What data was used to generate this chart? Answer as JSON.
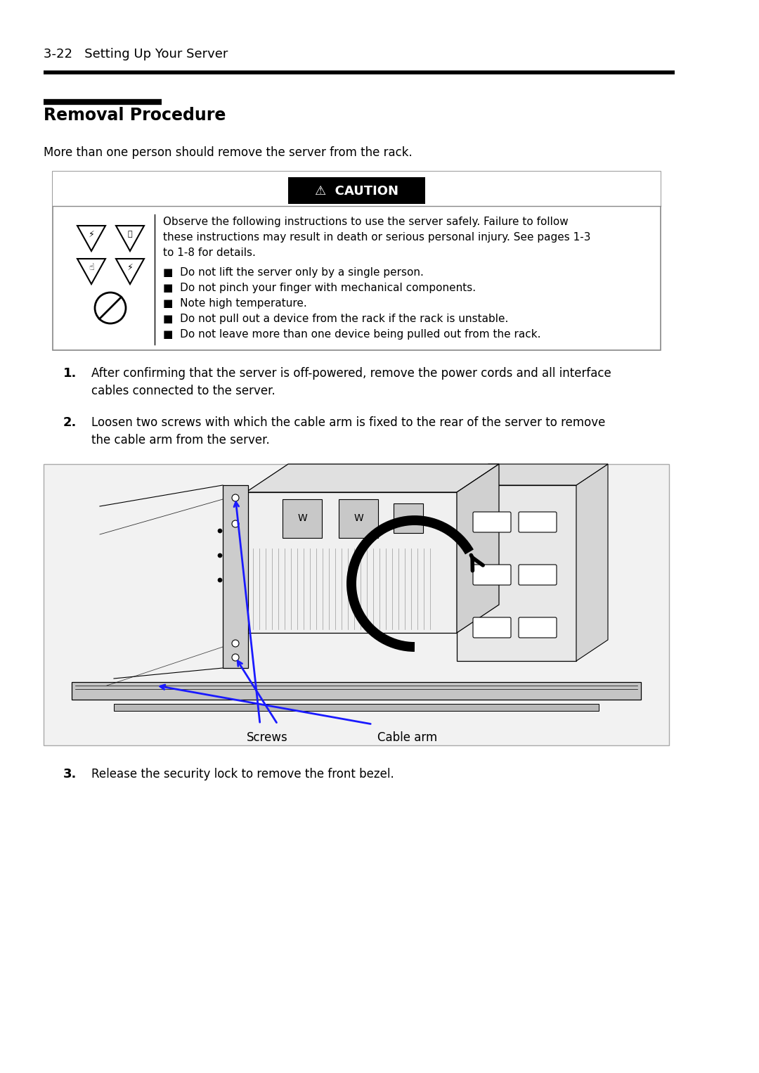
{
  "header_text": "3-22   Setting Up Your Server",
  "section_title": "Removal Procedure",
  "intro_text": "More than one person should remove the server from the rack.",
  "caution_label": "⚠  CAUTION",
  "caution_body_line1": "Observe the following instructions to use the server safely. Failure to follow",
  "caution_body_line2": "these instructions may result in death or serious personal injury. See pages 1-3",
  "caution_body_line3": "to 1-8 for details.",
  "bullet_items": [
    "Do not lift the server only by a single person.",
    "Do not pinch your finger with mechanical components.",
    "Note high temperature.",
    "Do not pull out a device from the rack if the rack is unstable.",
    "Do not leave more than one device being pulled out from the rack."
  ],
  "step1_num": "1.",
  "step1_text": "After confirming that the server is off-powered, remove the power cords and all interface\ncables connected to the server.",
  "step2_num": "2.",
  "step2_text": "Loosen two screws with which the cable arm is fixed to the rear of the server to remove\nthe cable arm from the server.",
  "step3_num": "3.",
  "step3_text": "Release the security lock to remove the front bezel.",
  "screws_label": "Screws",
  "cable_arm_label": "Cable arm",
  "bg_color": "#ffffff",
  "text_color": "#000000",
  "blue_color": "#1a1aff",
  "box_edge_color": "#999999",
  "illus_bg": "#f2f2f2"
}
